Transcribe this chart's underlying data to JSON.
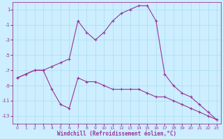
{
  "xlabel": "Windchill (Refroidissement éolien,°C)",
  "xlim": [
    -0.5,
    23.5
  ],
  "ylim": [
    -14.0,
    2.0
  ],
  "yticks": [
    1,
    -1,
    -3,
    -5,
    -7,
    -9,
    -11,
    -13
  ],
  "xticks": [
    0,
    1,
    2,
    3,
    4,
    5,
    6,
    7,
    8,
    9,
    10,
    11,
    12,
    13,
    14,
    15,
    16,
    17,
    18,
    19,
    20,
    21,
    22,
    23
  ],
  "bg_color": "#cceeff",
  "grid_color": "#aaddee",
  "line_color": "#993399",
  "line1_x": [
    0,
    1,
    2,
    3,
    4,
    5,
    6,
    7,
    8,
    9,
    10,
    11,
    12,
    13,
    14,
    15,
    16,
    17,
    18,
    19,
    20,
    21,
    22,
    23
  ],
  "line1_y": [
    -8.0,
    -7.5,
    -7.0,
    -7.0,
    -6.5,
    -6.0,
    -5.5,
    -0.5,
    -2.0,
    -3.0,
    -2.0,
    -0.5,
    0.5,
    1.0,
    1.5,
    1.5,
    -0.5,
    -7.5,
    -9.0,
    -10.0,
    -10.5,
    -11.5,
    -12.5,
    -13.5
  ],
  "line2_x": [
    0,
    1,
    2,
    3,
    4,
    5,
    6,
    7,
    8,
    9,
    10,
    11,
    12,
    13,
    14,
    15,
    16,
    17,
    18,
    19,
    20,
    21,
    22,
    23
  ],
  "line2_y": [
    -8.0,
    -7.5,
    -7.0,
    -7.0,
    -9.5,
    -11.5,
    -12.0,
    -8.0,
    -8.5,
    -8.5,
    -9.0,
    -9.5,
    -9.5,
    -9.5,
    -9.5,
    -10.0,
    -10.5,
    -10.5,
    -11.0,
    -11.5,
    -12.0,
    -12.5,
    -13.0,
    -13.5
  ]
}
